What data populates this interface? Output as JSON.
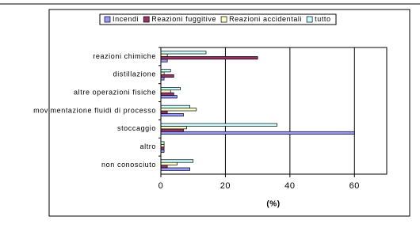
{
  "chart_data": {
    "type": "hbar",
    "x_label": "(%)",
    "categories": [
      "reazioni chimiche",
      "distillazione",
      "altre operazioni fisiche",
      "movimentazione fluidi di processo",
      "stoccaggio",
      "altro",
      "non conosciuto"
    ],
    "series": [
      {
        "name": "Incendi",
        "color": "#9999ff",
        "values": [
          2,
          1,
          5,
          7,
          60,
          1,
          9
        ]
      },
      {
        "name": "Reazioni fuggitive",
        "color": "#993366",
        "values": [
          30,
          4,
          4,
          2,
          7,
          1,
          2
        ]
      },
      {
        "name": "Reazioni accidentali",
        "color": "#ffffcc",
        "values": [
          2,
          1,
          3,
          11,
          8,
          1,
          5
        ]
      },
      {
        "name": "tutto",
        "color": "#ccffff",
        "values": [
          14,
          3,
          6,
          9,
          36,
          1,
          10
        ]
      }
    ],
    "xlim": [
      0,
      70
    ],
    "xticks": [
      0,
      20,
      40,
      60
    ],
    "grid": true,
    "legend": "top"
  }
}
